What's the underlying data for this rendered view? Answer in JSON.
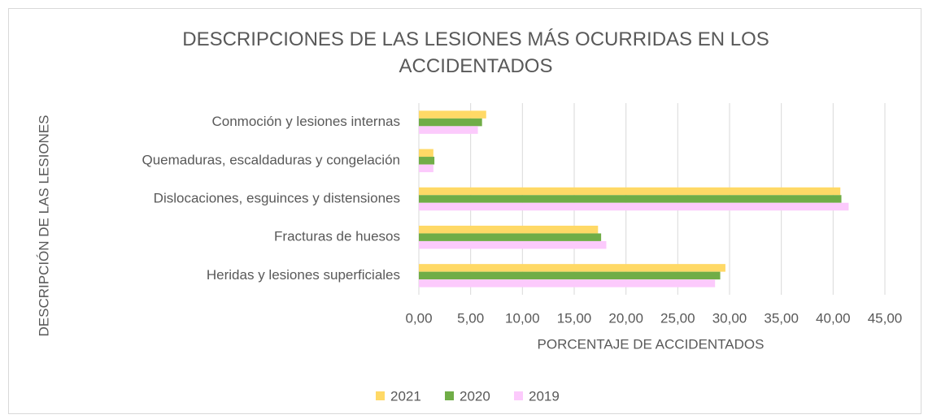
{
  "chart_data": {
    "type": "hbar",
    "title": "DESCRIPCIONES DE LAS LESIONES MÁS OCURRIDAS EN LOS ACCIDENTADOS",
    "x_label": "PORCENTAJE DE ACCIDENTADOS",
    "y_label": "DESCRIPCIÓN DE LAS LESIONES",
    "categories": [
      "Conmoción y lesiones internas",
      "Quemaduras, escaldaduras y congelación",
      "Dislocaciones, esguinces y distensiones",
      "Fracturas de huesos",
      "Heridas y lesiones superficiales"
    ],
    "series": [
      {
        "name": "2021",
        "color": "#ffd966",
        "values": [
          6.5,
          1.4,
          40.7,
          17.3,
          29.6
        ]
      },
      {
        "name": "2020",
        "color": "#70ad47",
        "values": [
          6.1,
          1.5,
          40.8,
          17.6,
          29.1
        ]
      },
      {
        "name": "2019",
        "color": "#fccafc",
        "values": [
          5.7,
          1.4,
          41.5,
          18.1,
          28.6
        ]
      }
    ],
    "xlim": [
      0,
      45
    ],
    "xticks": [
      {
        "value": 0,
        "label": "0,00"
      },
      {
        "value": 5,
        "label": "5,00"
      },
      {
        "value": 10,
        "label": "10,00"
      },
      {
        "value": 15,
        "label": "15,00"
      },
      {
        "value": 20,
        "label": "20,00"
      },
      {
        "value": 25,
        "label": "25,00"
      },
      {
        "value": 30,
        "label": "30,00"
      },
      {
        "value": 35,
        "label": "35,00"
      },
      {
        "value": 40,
        "label": "40,00"
      },
      {
        "value": 45,
        "label": "45,00"
      }
    ],
    "grid": true,
    "legend": "bottom"
  }
}
